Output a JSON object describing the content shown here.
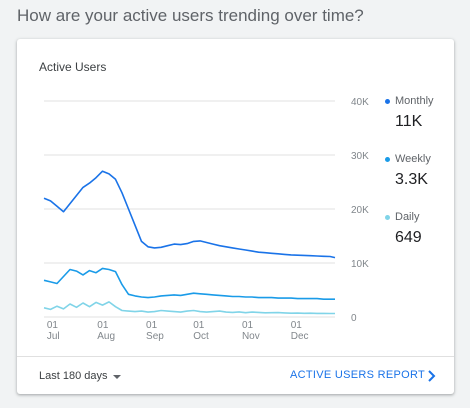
{
  "question": "How are your active users trending over time?",
  "card": {
    "title": "Active Users",
    "range_label": "Last 180 days",
    "report_link": "ACTIVE USERS REPORT"
  },
  "legend": [
    {
      "label": "Monthly",
      "value": "11K",
      "color": "#1a73e8"
    },
    {
      "label": "Weekly",
      "value": "3.3K",
      "color": "#1a9be8"
    },
    {
      "label": "Daily",
      "value": "649",
      "color": "#80d4e8"
    }
  ],
  "chart_data": {
    "type": "line",
    "y_ticks": [
      "40K",
      "30K",
      "20K",
      "10K",
      "0"
    ],
    "ylim": [
      0,
      40000
    ],
    "x_ticks": [
      {
        "day": "01",
        "month": "Jul"
      },
      {
        "day": "01",
        "month": "Aug"
      },
      {
        "day": "01",
        "month": "Sep"
      },
      {
        "day": "01",
        "month": "Oct"
      },
      {
        "day": "01",
        "month": "Nov"
      },
      {
        "day": "01",
        "month": "Dec"
      }
    ],
    "grid": true,
    "series": [
      {
        "name": "Monthly",
        "color": "#1a73e8",
        "x": [
          0,
          4,
          8,
          12,
          16,
          20,
          24,
          28,
          32,
          36,
          40,
          44,
          48,
          52,
          56,
          60,
          64,
          68,
          72,
          76,
          80,
          84,
          88,
          92,
          96,
          100,
          104,
          108,
          112,
          116,
          120,
          124,
          128,
          132,
          136,
          140,
          144,
          148,
          152,
          156,
          160,
          164,
          168,
          172,
          176,
          179
        ],
        "y": [
          22000,
          21500,
          20500,
          19500,
          21000,
          22500,
          24000,
          24800,
          25800,
          27000,
          26500,
          25500,
          23000,
          20000,
          17000,
          14000,
          13000,
          12800,
          12900,
          13200,
          13500,
          13400,
          13600,
          14000,
          14100,
          13800,
          13500,
          13200,
          13000,
          12800,
          12600,
          12400,
          12200,
          12000,
          11900,
          11800,
          11700,
          11600,
          11500,
          11450,
          11400,
          11350,
          11300,
          11250,
          11200,
          11000
        ]
      },
      {
        "name": "Weekly",
        "color": "#1a9be8",
        "x": [
          0,
          4,
          8,
          12,
          16,
          20,
          24,
          28,
          32,
          36,
          40,
          44,
          48,
          52,
          56,
          60,
          64,
          68,
          72,
          76,
          80,
          84,
          88,
          92,
          96,
          100,
          104,
          108,
          112,
          116,
          120,
          124,
          128,
          132,
          136,
          140,
          144,
          148,
          152,
          156,
          160,
          164,
          168,
          172,
          176,
          179
        ],
        "y": [
          6800,
          6500,
          6200,
          7500,
          8800,
          8500,
          7800,
          8600,
          8200,
          9000,
          8800,
          8400,
          6000,
          4200,
          3900,
          3700,
          3600,
          3700,
          3900,
          4000,
          4100,
          4000,
          4200,
          4400,
          4300,
          4200,
          4100,
          4000,
          3900,
          3800,
          3800,
          3700,
          3700,
          3600,
          3600,
          3600,
          3500,
          3500,
          3500,
          3400,
          3400,
          3400,
          3400,
          3300,
          3300,
          3300
        ]
      },
      {
        "name": "Daily",
        "color": "#80d4e8",
        "x": [
          0,
          4,
          8,
          12,
          16,
          20,
          24,
          28,
          32,
          36,
          40,
          44,
          48,
          52,
          56,
          60,
          64,
          68,
          72,
          76,
          80,
          84,
          88,
          92,
          96,
          100,
          104,
          108,
          112,
          116,
          120,
          124,
          128,
          132,
          136,
          140,
          144,
          148,
          152,
          156,
          160,
          164,
          168,
          172,
          176,
          179
        ],
        "y": [
          1700,
          1400,
          2000,
          1500,
          2400,
          1800,
          2600,
          1900,
          2700,
          2200,
          2800,
          1900,
          1200,
          1100,
          1000,
          1100,
          900,
          1000,
          1200,
          1100,
          1000,
          900,
          1100,
          1200,
          1000,
          900,
          1000,
          1100,
          900,
          850,
          950,
          800,
          900,
          850,
          780,
          800,
          820,
          760,
          700,
          720,
          680,
          700,
          670,
          660,
          650,
          649
        ]
      }
    ]
  }
}
